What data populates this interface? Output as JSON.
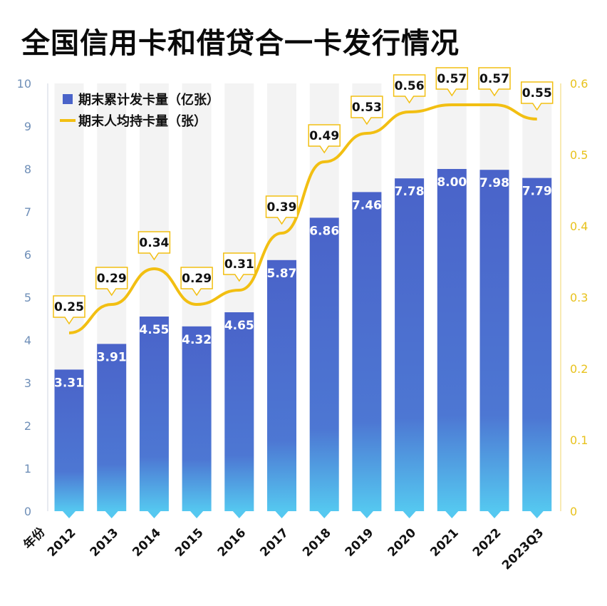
{
  "title": "全国信用卡和借贷合一卡发行情况",
  "chart_data": {
    "type": "bar",
    "categories": [
      "2012",
      "2013",
      "2014",
      "2015",
      "2016",
      "2017",
      "2018",
      "2019",
      "2020",
      "2021",
      "2022",
      "2023Q3"
    ],
    "series": [
      {
        "name": "期末累计发卡量（亿张）",
        "type": "bar",
        "axis": "left",
        "values": [
          3.31,
          3.91,
          4.55,
          4.32,
          4.65,
          5.87,
          6.86,
          7.46,
          7.78,
          8.0,
          7.98,
          7.79
        ],
        "labels": [
          "3.31",
          "3.91",
          "4.55",
          "4.32",
          "4.65",
          "5.87",
          "6.86",
          "7.46",
          "7.78",
          "8.00",
          "7.98",
          "7.79"
        ]
      },
      {
        "name": "期末人均持卡量（张）",
        "type": "line",
        "axis": "right",
        "values": [
          0.25,
          0.29,
          0.34,
          0.29,
          0.31,
          0.39,
          0.49,
          0.53,
          0.56,
          0.57,
          0.57,
          0.55
        ],
        "labels": [
          "0.25",
          "0.29",
          "0.34",
          "0.29",
          "0.31",
          "0.39",
          "0.49",
          "0.53",
          "0.56",
          "0.57",
          "0.57",
          "0.55"
        ]
      }
    ],
    "xlabel": "年份",
    "ylim_left": [
      0,
      10
    ],
    "ylim_right": [
      0,
      0.6
    ],
    "yticks_left": [
      "0",
      "1",
      "2",
      "3",
      "4",
      "5",
      "6",
      "7",
      "8",
      "9",
      "10"
    ],
    "yticks_right": [
      "0",
      "0.1",
      "0.2",
      "0.3",
      "0.4",
      "0.5",
      "0.6"
    ],
    "legend_position": "top-left",
    "colors": {
      "bar_top": "#4a63c9",
      "bar_bottom": "#55c8f0",
      "line": "#f2bf12",
      "column_bg": "#f3f3f3"
    }
  }
}
